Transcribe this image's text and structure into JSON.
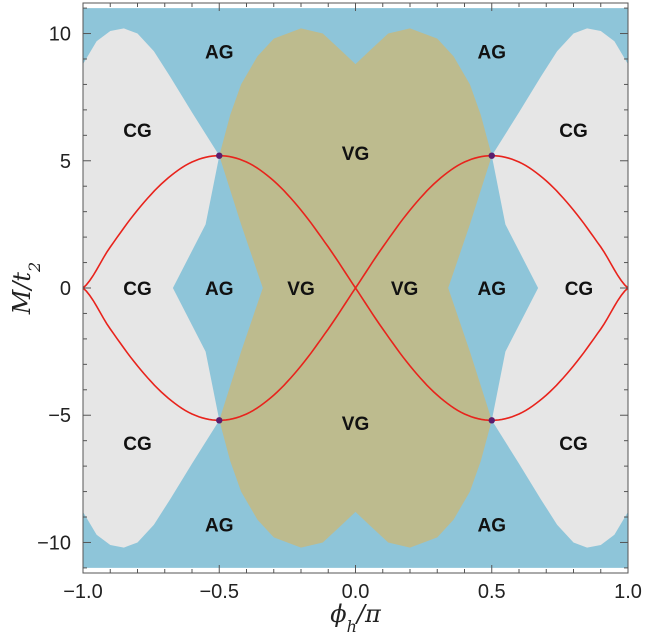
{
  "chart_data": {
    "type": "area",
    "title": "",
    "xlabel": "ϕh/π",
    "ylabel": "M/t2",
    "axis_labels": {
      "x": {
        "main": "ϕ",
        "sub": "h",
        "rest": "/π"
      },
      "y": {
        "main": "M/t",
        "sub": "2"
      }
    },
    "xlim": [
      -1.0,
      1.0
    ],
    "ylim": [
      -11.2,
      11.2
    ],
    "xticks": [
      -1.0,
      -0.5,
      0.0,
      0.5,
      1.0
    ],
    "xtick_labels": [
      "−1.0",
      "−0.5",
      "0.0",
      "0.5",
      "1.0"
    ],
    "yticks": [
      -10,
      -5,
      0,
      5,
      10
    ],
    "ytick_labels": [
      "−10",
      "−5",
      "0",
      "5",
      "10"
    ],
    "grid": false,
    "legend": "none",
    "colors": {
      "AG": "#8EC5D9",
      "CG": "#E6E6E6",
      "VG": "#BDBB8E",
      "curve": "#E8231C",
      "points": "#5B1E6E"
    },
    "regions": [
      {
        "name": "background",
        "label": "AG",
        "polygon": [
          [
            -1.0,
            11.0
          ],
          [
            1.0,
            11.0
          ],
          [
            1.0,
            -11.0
          ],
          [
            -1.0,
            -11.0
          ]
        ]
      },
      {
        "name": "cg-left",
        "label": "CG",
        "polygon": [
          [
            -1.0,
            8.8
          ],
          [
            -0.95,
            9.7
          ],
          [
            -0.9,
            10.1
          ],
          [
            -0.85,
            10.2
          ],
          [
            -0.8,
            10.0
          ],
          [
            -0.74,
            9.3
          ],
          [
            -0.68,
            8.3
          ],
          [
            -0.6,
            6.9
          ],
          [
            -0.5,
            5.2
          ],
          [
            -0.55,
            2.5
          ],
          [
            -0.67,
            0.0
          ],
          [
            -0.55,
            -2.5
          ],
          [
            -0.5,
            -5.2
          ],
          [
            -0.6,
            -6.9
          ],
          [
            -0.68,
            -8.3
          ],
          [
            -0.74,
            -9.3
          ],
          [
            -0.8,
            -10.0
          ],
          [
            -0.85,
            -10.2
          ],
          [
            -0.9,
            -10.1
          ],
          [
            -0.95,
            -9.7
          ],
          [
            -1.0,
            -8.8
          ]
        ]
      },
      {
        "name": "cg-right",
        "label": "CG",
        "polygon": [
          [
            1.0,
            8.8
          ],
          [
            0.95,
            9.7
          ],
          [
            0.9,
            10.1
          ],
          [
            0.85,
            10.2
          ],
          [
            0.8,
            10.0
          ],
          [
            0.74,
            9.3
          ],
          [
            0.68,
            8.3
          ],
          [
            0.6,
            6.9
          ],
          [
            0.5,
            5.2
          ],
          [
            0.55,
            2.5
          ],
          [
            0.67,
            0.0
          ],
          [
            0.55,
            -2.5
          ],
          [
            0.5,
            -5.2
          ],
          [
            0.6,
            -6.9
          ],
          [
            0.68,
            -8.3
          ],
          [
            0.74,
            -9.3
          ],
          [
            0.8,
            -10.0
          ],
          [
            0.85,
            -10.2
          ],
          [
            0.9,
            -10.1
          ],
          [
            0.95,
            -9.7
          ],
          [
            1.0,
            -8.8
          ]
        ]
      },
      {
        "name": "vg",
        "label": "VG",
        "polygon": [
          [
            -0.5,
            5.2
          ],
          [
            -0.46,
            6.8
          ],
          [
            -0.42,
            8.0
          ],
          [
            -0.36,
            9.1
          ],
          [
            -0.3,
            9.8
          ],
          [
            -0.2,
            10.2
          ],
          [
            -0.12,
            10.0
          ],
          [
            -0.05,
            9.3
          ],
          [
            0.0,
            8.8
          ],
          [
            0.05,
            9.3
          ],
          [
            0.12,
            10.0
          ],
          [
            0.2,
            10.2
          ],
          [
            0.3,
            9.8
          ],
          [
            0.36,
            9.1
          ],
          [
            0.42,
            8.0
          ],
          [
            0.46,
            6.8
          ],
          [
            0.5,
            5.2
          ],
          [
            0.42,
            2.5
          ],
          [
            0.34,
            0.0
          ],
          [
            0.42,
            -2.5
          ],
          [
            0.5,
            -5.2
          ],
          [
            0.46,
            -6.8
          ],
          [
            0.42,
            -8.0
          ],
          [
            0.36,
            -9.1
          ],
          [
            0.3,
            -9.8
          ],
          [
            0.2,
            -10.2
          ],
          [
            0.12,
            -10.0
          ],
          [
            0.05,
            -9.3
          ],
          [
            0.0,
            -8.8
          ],
          [
            -0.05,
            -9.3
          ],
          [
            -0.12,
            -10.0
          ],
          [
            -0.2,
            -10.2
          ],
          [
            -0.3,
            -9.8
          ],
          [
            -0.36,
            -9.1
          ],
          [
            -0.42,
            -8.0
          ],
          [
            -0.46,
            -6.8
          ],
          [
            -0.5,
            -5.2
          ],
          [
            -0.42,
            -2.5
          ],
          [
            -0.34,
            0.0
          ],
          [
            -0.42,
            2.5
          ]
        ]
      }
    ],
    "region_labels": [
      {
        "text": "AG",
        "x": -0.5,
        "y": 9.3
      },
      {
        "text": "AG",
        "x": 0.5,
        "y": 9.3
      },
      {
        "text": "CG",
        "x": -0.8,
        "y": 6.2
      },
      {
        "text": "CG",
        "x": 0.8,
        "y": 6.2
      },
      {
        "text": "VG",
        "x": 0.0,
        "y": 5.3
      },
      {
        "text": "CG",
        "x": -0.8,
        "y": 0.0
      },
      {
        "text": "AG",
        "x": -0.5,
        "y": 0.0
      },
      {
        "text": "VG",
        "x": -0.2,
        "y": 0.0
      },
      {
        "text": "VG",
        "x": 0.18,
        "y": 0.0
      },
      {
        "text": "AG",
        "x": 0.5,
        "y": 0.0
      },
      {
        "text": "CG",
        "x": 0.82,
        "y": 0.0
      },
      {
        "text": "VG",
        "x": 0.0,
        "y": -5.3
      },
      {
        "text": "CG",
        "x": -0.8,
        "y": -6.1
      },
      {
        "text": "CG",
        "x": 0.8,
        "y": -6.1
      },
      {
        "text": "AG",
        "x": -0.5,
        "y": -9.3
      },
      {
        "text": "AG",
        "x": 0.5,
        "y": -9.3
      }
    ],
    "series": [
      {
        "name": "",
        "x": [
          -1.0,
          -0.9,
          -0.8,
          -0.7,
          -0.6,
          -0.5,
          -0.4,
          -0.3,
          -0.2,
          -0.1,
          0.0,
          0.1,
          0.2,
          0.3,
          0.4,
          0.5,
          0.6,
          0.7,
          0.8,
          0.9,
          1.0
        ],
        "y": [
          0.0,
          1.61,
          3.06,
          4.21,
          4.95,
          5.2,
          4.95,
          4.21,
          3.06,
          1.61,
          0.0,
          -1.61,
          -3.06,
          -4.21,
          -4.95,
          -5.2,
          -4.95,
          -4.21,
          -3.06,
          -1.61,
          0.0
        ]
      },
      {
        "name": "",
        "x": [
          -1.0,
          -0.9,
          -0.8,
          -0.7,
          -0.6,
          -0.5,
          -0.4,
          -0.3,
          -0.2,
          -0.1,
          0.0,
          0.1,
          0.2,
          0.3,
          0.4,
          0.5,
          0.6,
          0.7,
          0.8,
          0.9,
          1.0
        ],
        "y": [
          0.0,
          -1.61,
          -3.06,
          -4.21,
          -4.95,
          -5.2,
          -4.95,
          -4.21,
          -3.06,
          -1.61,
          0.0,
          1.61,
          3.06,
          4.21,
          4.95,
          5.2,
          4.95,
          4.21,
          3.06,
          1.61,
          0.0
        ]
      }
    ],
    "points": [
      {
        "x": -0.5,
        "y": 5.2
      },
      {
        "x": 0.5,
        "y": 5.2
      },
      {
        "x": -0.5,
        "y": -5.2
      },
      {
        "x": 0.5,
        "y": -5.2
      }
    ]
  }
}
